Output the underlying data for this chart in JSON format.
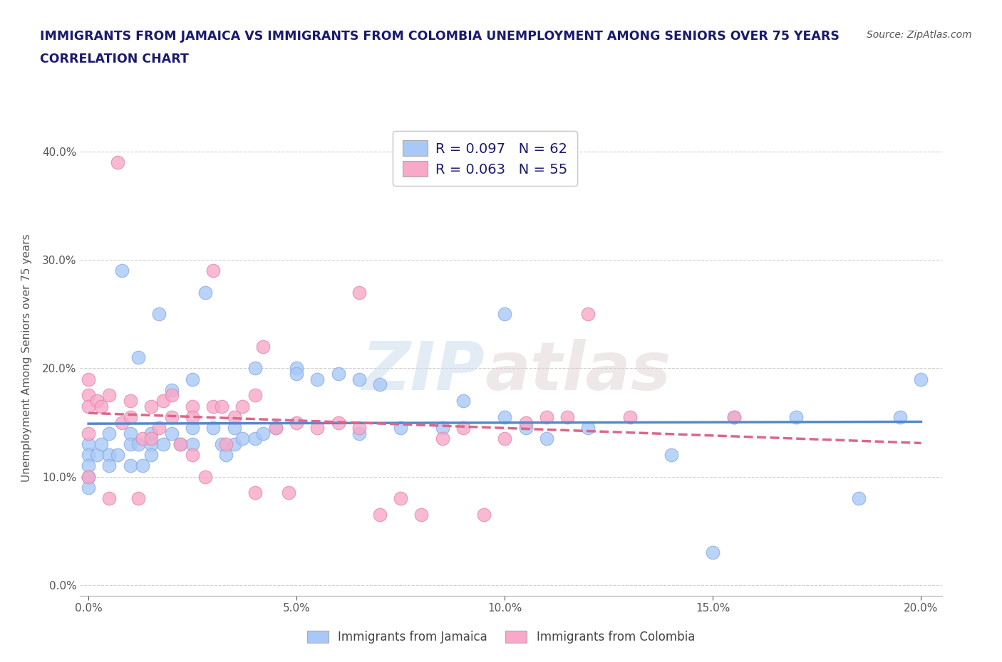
{
  "title_line1": "IMMIGRANTS FROM JAMAICA VS IMMIGRANTS FROM COLOMBIA UNEMPLOYMENT AMONG SENIORS OVER 75 YEARS",
  "title_line2": "CORRELATION CHART",
  "source": "Source: ZipAtlas.com",
  "ylabel": "Unemployment Among Seniors over 75 years",
  "xlim": [
    -0.002,
    0.205
  ],
  "ylim": [
    -0.01,
    0.43
  ],
  "xticks": [
    0.0,
    0.05,
    0.1,
    0.15,
    0.2
  ],
  "yticks": [
    0.0,
    0.1,
    0.2,
    0.3,
    0.4
  ],
  "jamaica_color": "#a8c8f8",
  "colombia_color": "#f8a8c8",
  "jamaica_edge": "#88aadd",
  "colombia_edge": "#dd88aa",
  "jamaica_R": 0.097,
  "jamaica_N": 62,
  "colombia_R": 0.063,
  "colombia_N": 55,
  "legend_label_jamaica": "Immigrants from Jamaica",
  "legend_label_colombia": "Immigrants from Colombia",
  "watermark_zip": "ZIP",
  "watermark_atlas": "atlas",
  "title_color": "#1a1a6e",
  "grid_color": "#cccccc",
  "jamaica_line_color": "#5588cc",
  "colombia_line_color": "#dd6688",
  "jamaica_points_x": [
    0.0,
    0.0,
    0.0,
    0.0,
    0.0,
    0.002,
    0.003,
    0.005,
    0.005,
    0.005,
    0.007,
    0.008,
    0.01,
    0.01,
    0.01,
    0.012,
    0.012,
    0.013,
    0.015,
    0.015,
    0.015,
    0.017,
    0.018,
    0.02,
    0.02,
    0.022,
    0.025,
    0.025,
    0.025,
    0.028,
    0.03,
    0.032,
    0.033,
    0.035,
    0.035,
    0.037,
    0.04,
    0.04,
    0.042,
    0.045,
    0.05,
    0.05,
    0.055,
    0.06,
    0.065,
    0.065,
    0.07,
    0.075,
    0.085,
    0.09,
    0.1,
    0.1,
    0.105,
    0.11,
    0.12,
    0.14,
    0.15,
    0.155,
    0.17,
    0.185,
    0.195,
    0.2
  ],
  "jamaica_points_y": [
    0.13,
    0.12,
    0.11,
    0.1,
    0.09,
    0.12,
    0.13,
    0.14,
    0.12,
    0.11,
    0.12,
    0.29,
    0.14,
    0.13,
    0.11,
    0.21,
    0.13,
    0.11,
    0.14,
    0.13,
    0.12,
    0.25,
    0.13,
    0.18,
    0.14,
    0.13,
    0.19,
    0.145,
    0.13,
    0.27,
    0.145,
    0.13,
    0.12,
    0.145,
    0.13,
    0.135,
    0.2,
    0.135,
    0.14,
    0.145,
    0.2,
    0.195,
    0.19,
    0.195,
    0.19,
    0.14,
    0.185,
    0.145,
    0.145,
    0.17,
    0.25,
    0.155,
    0.145,
    0.135,
    0.145,
    0.12,
    0.03,
    0.155,
    0.155,
    0.08,
    0.155,
    0.19
  ],
  "colombia_points_x": [
    0.0,
    0.0,
    0.0,
    0.0,
    0.0,
    0.002,
    0.003,
    0.005,
    0.005,
    0.007,
    0.008,
    0.01,
    0.01,
    0.012,
    0.013,
    0.015,
    0.015,
    0.017,
    0.018,
    0.02,
    0.02,
    0.022,
    0.025,
    0.025,
    0.025,
    0.028,
    0.03,
    0.03,
    0.032,
    0.033,
    0.035,
    0.037,
    0.04,
    0.04,
    0.042,
    0.045,
    0.048,
    0.05,
    0.055,
    0.06,
    0.065,
    0.065,
    0.07,
    0.075,
    0.08,
    0.085,
    0.09,
    0.095,
    0.1,
    0.105,
    0.11,
    0.115,
    0.12,
    0.13,
    0.155
  ],
  "colombia_points_y": [
    0.19,
    0.175,
    0.165,
    0.14,
    0.1,
    0.17,
    0.165,
    0.175,
    0.08,
    0.39,
    0.15,
    0.17,
    0.155,
    0.08,
    0.135,
    0.165,
    0.135,
    0.145,
    0.17,
    0.175,
    0.155,
    0.13,
    0.165,
    0.155,
    0.12,
    0.1,
    0.29,
    0.165,
    0.165,
    0.13,
    0.155,
    0.165,
    0.175,
    0.085,
    0.22,
    0.145,
    0.085,
    0.15,
    0.145,
    0.15,
    0.27,
    0.145,
    0.065,
    0.08,
    0.065,
    0.135,
    0.145,
    0.065,
    0.135,
    0.15,
    0.155,
    0.155,
    0.25,
    0.155,
    0.155
  ]
}
